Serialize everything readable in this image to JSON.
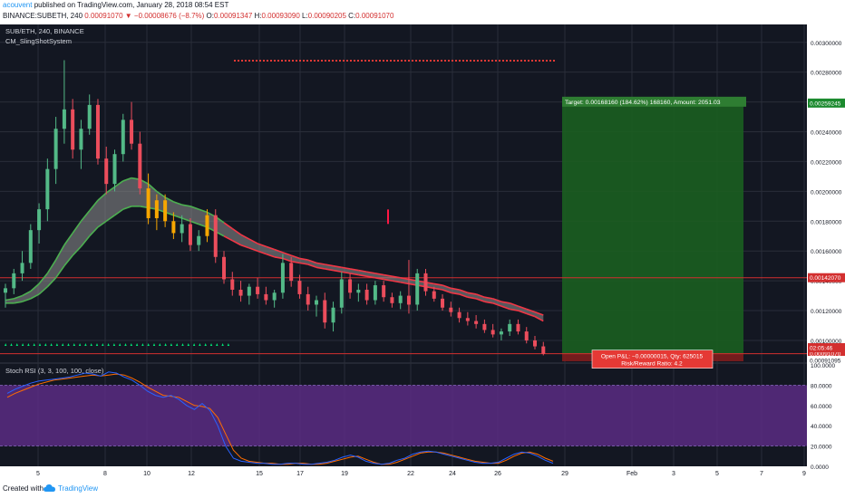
{
  "header": {
    "author": "acouvent",
    "published": "published on TradingView.com, January 28, 2018 08:54 EST",
    "symbol_line": "BINANCE:SUBETH, 240",
    "last": "0.00091070",
    "change": "▼ −0.00008676 (−8.7%)",
    "o_label": "O:",
    "o_value": "0.00091347",
    "h_label": "H:",
    "h_value": "0.00093090",
    "l_label": "L:",
    "l_value": "0.00090205",
    "c_label": "C:",
    "c_value": "0.00091070"
  },
  "footer": {
    "created": "Created with",
    "brand": "TradingView",
    "brand_icon": "tradingview-cloud-icon"
  },
  "colors": {
    "background": "#131722",
    "grid": "#2a2e39",
    "up": "#53b987",
    "down": "#eb4d5c",
    "ema_fast": "#4caf50",
    "ema_slow": "#f23645",
    "cloud": "#8f8f8f",
    "target_zone": "#1b5e20",
    "stop_zone": "#7f1d1d",
    "stoch_band": "#5b2b82",
    "stoch_k": "#2962ff",
    "stoch_d": "#ff6d00"
  },
  "chart_data": {
    "type": "candlestick",
    "title": "SUB/ETH, 240, BINANCE",
    "indicator": "CM_SlingShotSystem",
    "x_ticks": [
      "5",
      "8",
      "10",
      "12",
      "15",
      "17",
      "19",
      "22",
      "24",
      "26",
      "29",
      "Feb",
      "3",
      "5",
      "7",
      "9"
    ],
    "y_ticks": [
      "0.00300000",
      "0.00280000",
      "0.00260000",
      "0.00240000",
      "0.00220000",
      "0.00200000",
      "0.00180000",
      "0.00160000",
      "0.00140000",
      "0.00120000",
      "0.00100000"
    ],
    "ylim": [
      0.00086,
      0.00312
    ],
    "price_tags": [
      {
        "label": "0.00259245",
        "value": 0.00259245,
        "color": "#1b8a2e"
      },
      {
        "label": "0.00142070",
        "value": 0.0014207,
        "color": "#d32f2f"
      },
      {
        "label": "0.00091070",
        "value": 0.0009107,
        "color": "#d32f2f"
      },
      {
        "label": "02:05:46",
        "value": 0.00088,
        "color": "#d32f2f"
      },
      {
        "label": "0.00091095",
        "value": 0.00086,
        "color": "#ffffff"
      }
    ],
    "horizontal_lines": [
      0.0014207,
      0.0009107
    ],
    "candles": [
      {
        "o": 0.00132,
        "h": 0.00138,
        "l": 0.00122,
        "c": 0.00135
      },
      {
        "o": 0.00135,
        "h": 0.00148,
        "l": 0.00131,
        "c": 0.00145
      },
      {
        "o": 0.00145,
        "h": 0.0016,
        "l": 0.0014,
        "c": 0.00152
      },
      {
        "o": 0.00152,
        "h": 0.00178,
        "l": 0.00148,
        "c": 0.00174
      },
      {
        "o": 0.00174,
        "h": 0.00192,
        "l": 0.00165,
        "c": 0.00188
      },
      {
        "o": 0.00188,
        "h": 0.00222,
        "l": 0.0018,
        "c": 0.00215
      },
      {
        "o": 0.00215,
        "h": 0.0025,
        "l": 0.00205,
        "c": 0.00242
      },
      {
        "o": 0.00242,
        "h": 0.00288,
        "l": 0.00232,
        "c": 0.00255
      },
      {
        "o": 0.00255,
        "h": 0.00262,
        "l": 0.00222,
        "c": 0.00228
      },
      {
        "o": 0.00228,
        "h": 0.00248,
        "l": 0.00215,
        "c": 0.00242
      },
      {
        "o": 0.00242,
        "h": 0.00265,
        "l": 0.00238,
        "c": 0.00258
      },
      {
        "o": 0.00258,
        "h": 0.00262,
        "l": 0.00218,
        "c": 0.00222
      },
      {
        "o": 0.00222,
        "h": 0.0023,
        "l": 0.00198,
        "c": 0.00205
      },
      {
        "o": 0.00205,
        "h": 0.00228,
        "l": 0.002,
        "c": 0.00225
      },
      {
        "o": 0.00225,
        "h": 0.00252,
        "l": 0.0022,
        "c": 0.00248
      },
      {
        "o": 0.00248,
        "h": 0.0026,
        "l": 0.00228,
        "c": 0.00232
      },
      {
        "o": 0.00232,
        "h": 0.0024,
        "l": 0.00198,
        "c": 0.00202
      },
      {
        "o": 0.00202,
        "h": 0.00212,
        "l": 0.00178,
        "c": 0.00182
      },
      {
        "o": 0.00182,
        "h": 0.00198,
        "l": 0.00174,
        "c": 0.00194
      },
      {
        "o": 0.00194,
        "h": 0.00198,
        "l": 0.00176,
        "c": 0.0018
      },
      {
        "o": 0.0018,
        "h": 0.00186,
        "l": 0.00168,
        "c": 0.00172
      },
      {
        "o": 0.00172,
        "h": 0.00184,
        "l": 0.00166,
        "c": 0.00178
      },
      {
        "o": 0.00178,
        "h": 0.00182,
        "l": 0.0016,
        "c": 0.00164
      },
      {
        "o": 0.00164,
        "h": 0.00174,
        "l": 0.0016,
        "c": 0.0017
      },
      {
        "o": 0.0017,
        "h": 0.00188,
        "l": 0.00166,
        "c": 0.00184
      },
      {
        "o": 0.00184,
        "h": 0.00188,
        "l": 0.00152,
        "c": 0.00156
      },
      {
        "o": 0.00156,
        "h": 0.0016,
        "l": 0.00138,
        "c": 0.00141
      },
      {
        "o": 0.00141,
        "h": 0.00146,
        "l": 0.0013,
        "c": 0.00134
      },
      {
        "o": 0.00134,
        "h": 0.0014,
        "l": 0.00126,
        "c": 0.0013
      },
      {
        "o": 0.0013,
        "h": 0.00138,
        "l": 0.00124,
        "c": 0.00136
      },
      {
        "o": 0.00136,
        "h": 0.00142,
        "l": 0.00128,
        "c": 0.00131
      },
      {
        "o": 0.00131,
        "h": 0.00136,
        "l": 0.00124,
        "c": 0.00127
      },
      {
        "o": 0.00127,
        "h": 0.00134,
        "l": 0.00122,
        "c": 0.00132
      },
      {
        "o": 0.00132,
        "h": 0.00158,
        "l": 0.00128,
        "c": 0.00152
      },
      {
        "o": 0.00152,
        "h": 0.00156,
        "l": 0.00136,
        "c": 0.0014
      },
      {
        "o": 0.0014,
        "h": 0.00144,
        "l": 0.00128,
        "c": 0.00131
      },
      {
        "o": 0.00131,
        "h": 0.00136,
        "l": 0.0012,
        "c": 0.00124
      },
      {
        "o": 0.00124,
        "h": 0.0013,
        "l": 0.00116,
        "c": 0.00127
      },
      {
        "o": 0.00127,
        "h": 0.00132,
        "l": 0.00108,
        "c": 0.00112
      },
      {
        "o": 0.00112,
        "h": 0.00126,
        "l": 0.00106,
        "c": 0.00122
      },
      {
        "o": 0.00122,
        "h": 0.00146,
        "l": 0.00118,
        "c": 0.00141
      },
      {
        "o": 0.00141,
        "h": 0.00145,
        "l": 0.00128,
        "c": 0.00132
      },
      {
        "o": 0.00132,
        "h": 0.00138,
        "l": 0.00126,
        "c": 0.00134
      },
      {
        "o": 0.00134,
        "h": 0.00138,
        "l": 0.00124,
        "c": 0.00127
      },
      {
        "o": 0.00127,
        "h": 0.0014,
        "l": 0.00124,
        "c": 0.00137
      },
      {
        "o": 0.00137,
        "h": 0.0014,
        "l": 0.00126,
        "c": 0.00129
      },
      {
        "o": 0.00129,
        "h": 0.00132,
        "l": 0.00122,
        "c": 0.00125
      },
      {
        "o": 0.00125,
        "h": 0.00133,
        "l": 0.00121,
        "c": 0.0013
      },
      {
        "o": 0.0013,
        "h": 0.00154,
        "l": 0.00118,
        "c": 0.00124
      },
      {
        "o": 0.00124,
        "h": 0.00148,
        "l": 0.0012,
        "c": 0.00145
      },
      {
        "o": 0.00145,
        "h": 0.00148,
        "l": 0.0013,
        "c": 0.00133
      },
      {
        "o": 0.00133,
        "h": 0.00136,
        "l": 0.00126,
        "c": 0.00128
      },
      {
        "o": 0.00128,
        "h": 0.00131,
        "l": 0.0012,
        "c": 0.00122
      },
      {
        "o": 0.00122,
        "h": 0.00126,
        "l": 0.00116,
        "c": 0.00119
      },
      {
        "o": 0.00119,
        "h": 0.00122,
        "l": 0.00112,
        "c": 0.00115
      },
      {
        "o": 0.00115,
        "h": 0.00119,
        "l": 0.0011,
        "c": 0.00113
      },
      {
        "o": 0.00113,
        "h": 0.00117,
        "l": 0.00108,
        "c": 0.00111
      },
      {
        "o": 0.00111,
        "h": 0.00114,
        "l": 0.00105,
        "c": 0.00107
      },
      {
        "o": 0.00107,
        "h": 0.00111,
        "l": 0.00102,
        "c": 0.00104
      },
      {
        "o": 0.00104,
        "h": 0.00108,
        "l": 0.001,
        "c": 0.00106
      },
      {
        "o": 0.00106,
        "h": 0.00114,
        "l": 0.00103,
        "c": 0.00111
      },
      {
        "o": 0.00111,
        "h": 0.00114,
        "l": 0.00104,
        "c": 0.00106
      },
      {
        "o": 0.00106,
        "h": 0.00109,
        "l": 0.00098,
        "c": 0.001
      },
      {
        "o": 0.001,
        "h": 0.00103,
        "l": 0.00094,
        "c": 0.00096
      },
      {
        "o": 0.00096,
        "h": 0.00099,
        "l": 0.0009,
        "c": 0.00091
      }
    ],
    "ema_fast_band": [
      0.00125,
      0.00125,
      0.00126,
      0.00128,
      0.00131,
      0.00136,
      0.00142,
      0.0015,
      0.00157,
      0.00163,
      0.0017,
      0.00176,
      0.0018,
      0.00184,
      0.00188,
      0.0019,
      0.0019,
      0.00189,
      0.00188,
      0.00186,
      0.00184,
      0.00182,
      0.0018,
      0.00178,
      0.00176,
      0.00173,
      0.0017,
      0.00167,
      0.00164,
      0.00162,
      0.0016,
      0.00158,
      0.00156,
      0.00155,
      0.00153,
      0.00152,
      0.00151,
      0.00149,
      0.00148,
      0.00147,
      0.00146,
      0.00145,
      0.00144,
      0.00143,
      0.00142,
      0.00141,
      0.0014,
      0.00139,
      0.00138,
      0.00137,
      0.00136,
      0.00135,
      0.00134,
      0.00132,
      0.00131,
      0.00129,
      0.00128,
      0.00126,
      0.00125,
      0.00123,
      0.00121,
      0.0012,
      0.00118,
      0.00116,
      0.00113
    ],
    "ema_slow_band": [
      0.00127,
      0.00128,
      0.0013,
      0.00133,
      0.00138,
      0.00145,
      0.00154,
      0.00164,
      0.00172,
      0.0018,
      0.00187,
      0.00194,
      0.00199,
      0.00203,
      0.00207,
      0.00209,
      0.00208,
      0.00205,
      0.002,
      0.00196,
      0.00193,
      0.00191,
      0.0019,
      0.00188,
      0.00186,
      0.00183,
      0.00179,
      0.00175,
      0.00171,
      0.00168,
      0.00165,
      0.00163,
      0.00161,
      0.00159,
      0.00157,
      0.00155,
      0.00154,
      0.00152,
      0.00151,
      0.0015,
      0.00149,
      0.00148,
      0.00147,
      0.00146,
      0.00145,
      0.00144,
      0.00143,
      0.00142,
      0.00141,
      0.0014,
      0.00139,
      0.00138,
      0.00137,
      0.00135,
      0.00134,
      0.00132,
      0.00131,
      0.00129,
      0.00128,
      0.00126,
      0.00125,
      0.00123,
      0.00121,
      0.00119,
      0.00117
    ],
    "overbought_markers": 40,
    "signal_marker": {
      "value": 0.00183
    },
    "position": {
      "target_label": "Target: 0.00168160 (184.62%) 168160, Amount: 2051.03",
      "target_price": 0.00259245,
      "entry_price": 0.0009107,
      "stop_price": 0.00086,
      "pnl_label": "Open P&L: −0.00000015, Qty: 625015",
      "rr_label": "Risk/Reward Ratio: 4.2"
    },
    "stoch": {
      "label": "Stoch RSI (3, 3, 100, 100, close)",
      "y_ticks": [
        "100.0000",
        "80.0000",
        "60.0000",
        "40.0000",
        "20.0000",
        "0.0000"
      ],
      "band": [
        20,
        80
      ],
      "k": [
        72,
        76,
        79,
        82,
        84,
        85,
        86,
        87,
        88,
        90,
        92,
        91,
        89,
        93,
        92,
        88,
        85,
        80,
        74,
        70,
        68,
        70,
        66,
        60,
        56,
        62,
        55,
        40,
        20,
        8,
        5,
        4,
        3,
        3,
        2,
        2,
        3,
        3,
        2,
        2,
        3,
        4,
        6,
        9,
        11,
        9,
        5,
        3,
        2,
        3,
        6,
        8,
        12,
        14,
        15,
        14,
        12,
        10,
        8,
        6,
        4,
        3,
        3,
        4,
        8,
        12,
        14,
        13,
        10,
        6,
        3
      ],
      "d": [
        68,
        72,
        75,
        78,
        81,
        83,
        85,
        86,
        87,
        88,
        89,
        90,
        89,
        90,
        91,
        90,
        87,
        83,
        78,
        74,
        70,
        69,
        68,
        64,
        60,
        59,
        57,
        48,
        32,
        16,
        8,
        5,
        4,
        3,
        3,
        2,
        2,
        3,
        3,
        2,
        2,
        3,
        5,
        7,
        9,
        10,
        7,
        4,
        2,
        2,
        4,
        7,
        10,
        13,
        14,
        14,
        13,
        11,
        9,
        7,
        5,
        4,
        3,
        3,
        6,
        10,
        13,
        14,
        12,
        8,
        5
      ]
    }
  }
}
